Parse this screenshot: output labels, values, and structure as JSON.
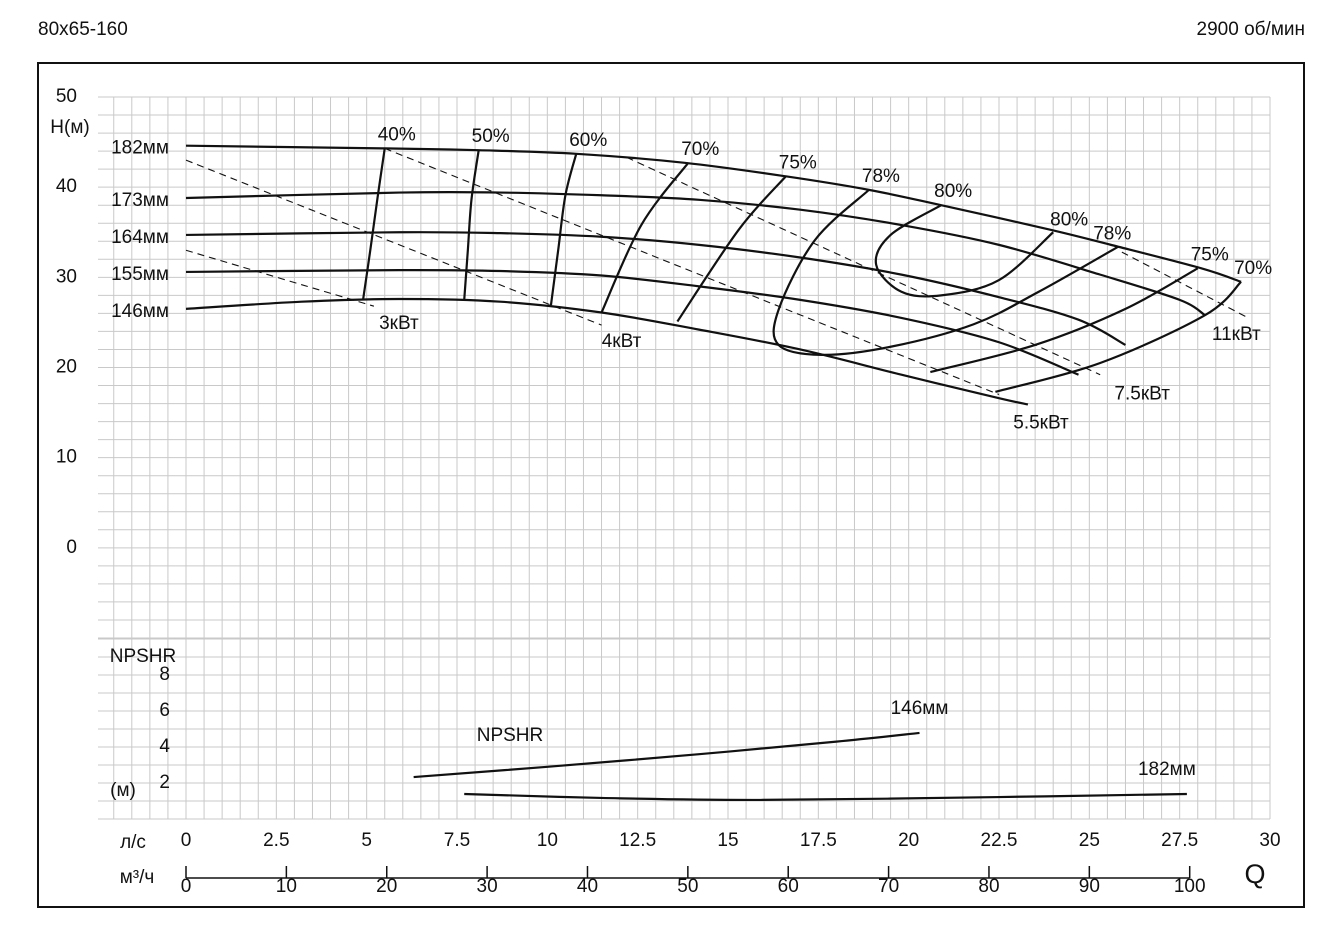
{
  "title": "80x65-160",
  "speed": "2900 об/мин",
  "chart_data": [
    {
      "type": "line",
      "ylabel": "H(м)",
      "xlim": [
        0,
        30
      ],
      "ylim": [
        -10,
        50
      ],
      "yticks": [
        0,
        10,
        20,
        30,
        40,
        50
      ],
      "grid": true,
      "xgrid": 0.5,
      "ygrid": 2,
      "series": [
        {
          "name": "182мм",
          "color": "#111111",
          "x": [
            0,
            5.5,
            8.1,
            10.8,
            13.8,
            16.6,
            18.9,
            20.9,
            23.9,
            25.6,
            28.1,
            29.2
          ],
          "values": [
            44.6,
            44.3,
            44.1,
            43.7,
            42.7,
            41.2,
            39.7,
            38.0,
            35.3,
            33.6,
            31.0,
            29.5
          ]
        },
        {
          "name": "173мм",
          "color": "#111111",
          "x": [
            0,
            5.9,
            8.7,
            11.5,
            14.2,
            17.0,
            19.8,
            22.5,
            25.3,
            27.5,
            28.2
          ],
          "values": [
            38.8,
            39.4,
            39.4,
            39.1,
            38.6,
            37.5,
            35.8,
            33.6,
            30.3,
            27.5,
            25.8
          ]
        },
        {
          "name": "164мм",
          "color": "#111111",
          "x": [
            0,
            5.9,
            8.7,
            11.5,
            14.2,
            17.0,
            19.8,
            22.5,
            24.7,
            26.0
          ],
          "values": [
            34.7,
            35.0,
            34.9,
            34.5,
            33.6,
            32.2,
            30.3,
            27.8,
            25.3,
            22.5
          ]
        },
        {
          "name": "155мм",
          "color": "#111111",
          "x": [
            0,
            5.9,
            8.7,
            11.5,
            14.2,
            17.0,
            19.8,
            22.5,
            24.7
          ],
          "values": [
            30.6,
            30.8,
            30.7,
            30.2,
            29.0,
            27.5,
            25.5,
            22.8,
            19.2
          ]
        },
        {
          "name": "146мм",
          "color": "#111111",
          "x": [
            0,
            3.2,
            5.9,
            8.7,
            11.5,
            14.2,
            17.0,
            19.8,
            22.5,
            23.3
          ],
          "values": [
            26.5,
            27.3,
            27.6,
            27.3,
            26.1,
            24.2,
            22.0,
            19.2,
            16.6,
            15.9
          ]
        }
      ],
      "efficiency": [
        {
          "name": "40%",
          "x": [
            5.5,
            5.3,
            5.1,
            4.9
          ],
          "values": [
            44.3,
            38.8,
            33.0,
            27.5
          ]
        },
        {
          "name": "50%",
          "x": [
            8.1,
            7.9,
            7.8,
            7.7
          ],
          "values": [
            44.1,
            38.6,
            33.0,
            27.5
          ]
        },
        {
          "name": "60%",
          "x": [
            10.8,
            10.5,
            10.3,
            10.1
          ],
          "values": [
            43.7,
            39.1,
            33.0,
            26.9
          ]
        },
        {
          "name": "70%",
          "x": [
            13.9,
            12.6,
            11.5
          ],
          "values": [
            42.7,
            35.8,
            26.1
          ]
        },
        {
          "name": "75%",
          "x": [
            16.6,
            15.3,
            13.6
          ],
          "values": [
            41.2,
            35.3,
            25.1
          ]
        },
        {
          "name": "78%",
          "x": [
            18.9,
            17.4,
            16.4,
            16.4,
            17.6,
            19.5,
            21.8,
            23.6,
            25.8
          ],
          "values": [
            39.7,
            34.1,
            26.4,
            22.5,
            21.4,
            22.3,
            24.8,
            28.4,
            33.4
          ]
        },
        {
          "name": "80%",
          "x": [
            20.9,
            19.5,
            19.1,
            19.8,
            20.9,
            22.5,
            24.0
          ],
          "values": [
            38.0,
            34.7,
            31.4,
            28.4,
            28.0,
            29.7,
            35.0
          ]
        },
        {
          "name": "75%",
          "x": [
            28.0,
            26.0,
            23.5,
            20.6
          ],
          "values": [
            31.0,
            26.5,
            22.5,
            19.5
          ]
        },
        {
          "name": "70%",
          "x": [
            29.2,
            28.2,
            25.3,
            22.4
          ],
          "values": [
            29.5,
            25.8,
            20.5,
            17.3
          ]
        }
      ],
      "power": [
        {
          "name": "3кВт",
          "x": [
            0,
            5.2
          ],
          "values": [
            33.0,
            26.8
          ]
        },
        {
          "name": "4кВт",
          "x": [
            0,
            11.5
          ],
          "values": [
            43.0,
            24.7
          ]
        },
        {
          "name": "5.5кВт",
          "x": [
            5.5,
            22.5
          ],
          "values": [
            44.3,
            17.0
          ]
        },
        {
          "name": "7.5кВт",
          "x": [
            12.2,
            25.3
          ],
          "values": [
            43.3,
            19.2
          ]
        },
        {
          "name": "11кВт",
          "x": [
            25.9,
            29.4
          ],
          "values": [
            32.8,
            25.5
          ]
        }
      ]
    },
    {
      "type": "line",
      "ylabel": "NPSHR",
      "yunit": "(м)",
      "series_label": "NPSHR",
      "xlim": [
        0,
        30
      ],
      "ylim": [
        0,
        10
      ],
      "yticks": [
        2,
        4,
        6,
        8
      ],
      "grid": true,
      "xgrid": 0.5,
      "ygrid": 1,
      "xlabel": "л/с",
      "xticks": [
        0,
        2.5,
        5,
        7.5,
        10,
        12.5,
        15,
        17.5,
        20,
        22.5,
        25,
        27.5,
        30
      ],
      "x2label": "м³/ч",
      "x2lim": [
        0,
        108
      ],
      "x2ticks": [
        0,
        10,
        20,
        30,
        40,
        50,
        60,
        70,
        80,
        90,
        100
      ],
      "qlabel": "Q",
      "series": [
        {
          "name": "146мм",
          "color": "#111111",
          "x": [
            6.3,
            10.0,
            14.2,
            18.0,
            20.3
          ],
          "values": [
            2.33,
            2.9,
            3.6,
            4.3,
            4.78
          ]
        },
        {
          "name": "182мм",
          "color": "#111111",
          "x": [
            7.7,
            11.5,
            15.9,
            22.5,
            27.7
          ],
          "values": [
            1.39,
            1.17,
            1.06,
            1.22,
            1.39
          ]
        }
      ]
    }
  ]
}
